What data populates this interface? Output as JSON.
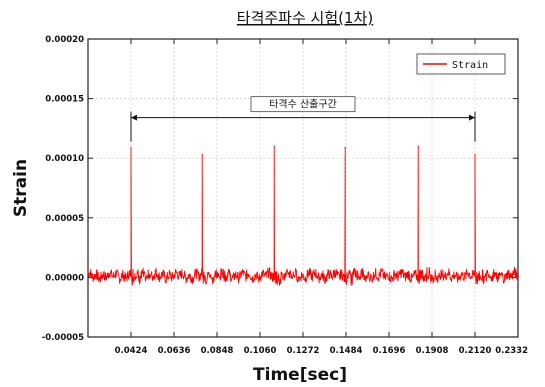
{
  "chart_data": {
    "type": "line",
    "title": "타격주파수 시험(1차)",
    "xlabel": "Time[sec]",
    "ylabel": "Strain",
    "xlim": [
      0.0212,
      0.2332
    ],
    "ylim": [
      -5e-05,
      0.0002
    ],
    "x_ticks": [
      "0.0424",
      "0.0636",
      "0.0848",
      "0.1060",
      "0.1272",
      "0.1484",
      "0.1696",
      "0.1908",
      "0.2120",
      "0.2332"
    ],
    "y_ticks": [
      "0.00020",
      "0.00015",
      "0.00010",
      "0.00005",
      "0.00000",
      "-0.00005"
    ],
    "grid": true,
    "legend": {
      "position": "top-right",
      "entries": [
        "Strain"
      ]
    },
    "annotation": {
      "text": "타격수 산출구간",
      "x_start": 0.0424,
      "x_end": 0.212,
      "y": 0.000134
    },
    "series": [
      {
        "name": "Strain",
        "color": "#ff0000",
        "baseline": 1.5e-06,
        "noise": 4.5e-06,
        "peaks": [
          {
            "x": 0.0424,
            "y": 0.000109
          },
          {
            "x": 0.0775,
            "y": 0.000103
          },
          {
            "x": 0.113,
            "y": 0.00011
          },
          {
            "x": 0.148,
            "y": 0.000109
          },
          {
            "x": 0.184,
            "y": 0.00011
          },
          {
            "x": 0.212,
            "y": 0.000103
          }
        ]
      }
    ]
  }
}
